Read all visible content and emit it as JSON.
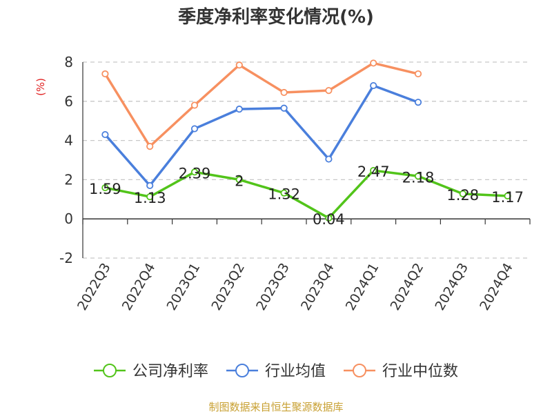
{
  "title": "季度净利率变化情况(%)",
  "unit_label": "(%)",
  "source": "制图数据来自恒生聚源数据库",
  "chart_data": {
    "type": "line",
    "title": "季度净利率变化情况(%)",
    "ylabel": "(%)",
    "ylim": [
      -2,
      8
    ],
    "yticks": [
      -2,
      0,
      2,
      4,
      6,
      8
    ],
    "grid": true,
    "legend_position": "bottom",
    "categories": [
      "2022Q3",
      "2022Q4",
      "2023Q1",
      "2023Q2",
      "2023Q3",
      "2023Q4",
      "2024Q1",
      "2024Q2",
      "2024Q3",
      "2024Q4"
    ],
    "series": [
      {
        "name": "公司净利率",
        "color": "#52c41a",
        "values": [
          1.59,
          1.13,
          2.39,
          2,
          1.32,
          0.04,
          2.47,
          2.18,
          1.28,
          1.17
        ],
        "labels": [
          "1.59",
          "1.13",
          "2.39",
          "2",
          "1.32",
          "0.04",
          "2.47",
          "2.18",
          "1.28",
          "1.17"
        ]
      },
      {
        "name": "行业均值",
        "color": "#4a7fdc",
        "values": [
          4.3,
          1.7,
          4.6,
          5.6,
          5.65,
          3.05,
          6.8,
          5.95,
          null,
          null
        ]
      },
      {
        "name": "行业中位数",
        "color": "#f79060",
        "values": [
          7.4,
          3.7,
          5.8,
          7.85,
          6.45,
          6.55,
          7.95,
          7.4,
          null,
          null
        ]
      }
    ]
  }
}
